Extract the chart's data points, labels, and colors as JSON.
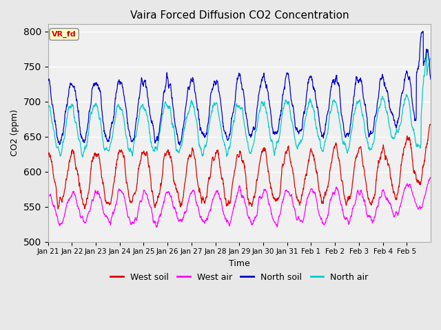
{
  "title": "Vaira Forced Diffusion CO2 Concentration",
  "xlabel": "Time",
  "ylabel": "CO2 (ppm)",
  "ylim": [
    500,
    810
  ],
  "yticks": [
    500,
    550,
    600,
    650,
    700,
    750,
    800
  ],
  "date_labels": [
    "Jan 21",
    "Jan 22",
    "Jan 23",
    "Jan 24",
    "Jan 25",
    "Jan 26",
    "Jan 27",
    "Jan 28",
    "Jan 29",
    "Jan 30",
    "Jan 31",
    "Feb 1",
    "Feb 2",
    "Feb 3",
    "Feb 4",
    "Feb 5"
  ],
  "n_days": 16,
  "legend_label": "VR_fd",
  "series": {
    "west_soil": {
      "color": "#dd0000",
      "label": "West soil"
    },
    "west_air": {
      "color": "#ff00ff",
      "label": "West air"
    },
    "north_soil": {
      "color": "#0000cc",
      "label": "North soil"
    },
    "north_air": {
      "color": "#00cccc",
      "label": "North air"
    }
  },
  "background_color": "#e8e8e8",
  "plot_bg": "#f0f0f0",
  "grid_color": "#ffffff"
}
